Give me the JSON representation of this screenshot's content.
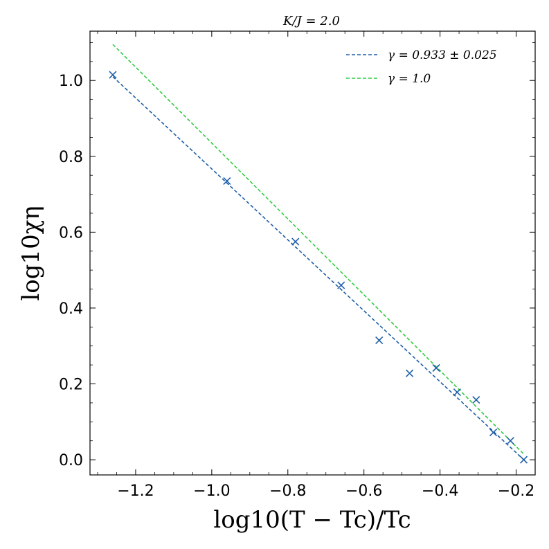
{
  "chart_data": {
    "type": "scatter",
    "title": "K/J = 2.0",
    "xlabel": "log10(T − Tc)/Tc",
    "ylabel": "log10χη",
    "xlim": [
      -1.32,
      -0.15
    ],
    "ylim": [
      -0.04,
      1.13
    ],
    "x_ticks": [
      -1.2,
      -1.0,
      -0.8,
      -0.6,
      -0.4,
      -0.2
    ],
    "x_tick_labels": [
      "−1.2",
      "−1.0",
      "−0.8",
      "−0.6",
      "−0.4",
      "−0.2"
    ],
    "y_ticks": [
      0.0,
      0.2,
      0.4,
      0.6,
      0.8,
      1.0
    ],
    "y_tick_labels": [
      "0.0",
      "0.2",
      "0.4",
      "0.6",
      "0.8",
      "1.0"
    ],
    "grid": false,
    "legend_position": "top-right",
    "points": {
      "marker": "x",
      "color": "#1f5fa8",
      "x": [
        -1.26,
        -0.96,
        -0.78,
        -0.66,
        -0.56,
        -0.48,
        -0.41,
        -0.355,
        -0.305,
        -0.26,
        -0.215,
        -0.18
      ],
      "y": [
        1.015,
        0.735,
        0.575,
        0.46,
        0.315,
        0.228,
        0.242,
        0.178,
        0.158,
        0.072,
        0.05,
        0.0
      ]
    },
    "series": [
      {
        "name": "γ = 0.933 ± 0.025",
        "style": "dashed",
        "color": "#1f5fa8",
        "x": [
          -1.26,
          -0.18
        ],
        "y": [
          1.01,
          0.0
        ]
      },
      {
        "name": "γ = 1.0",
        "style": "dashed",
        "color": "#2ecc40",
        "x": [
          -1.26,
          -0.18
        ],
        "y": [
          1.095,
          0.015
        ]
      }
    ]
  }
}
